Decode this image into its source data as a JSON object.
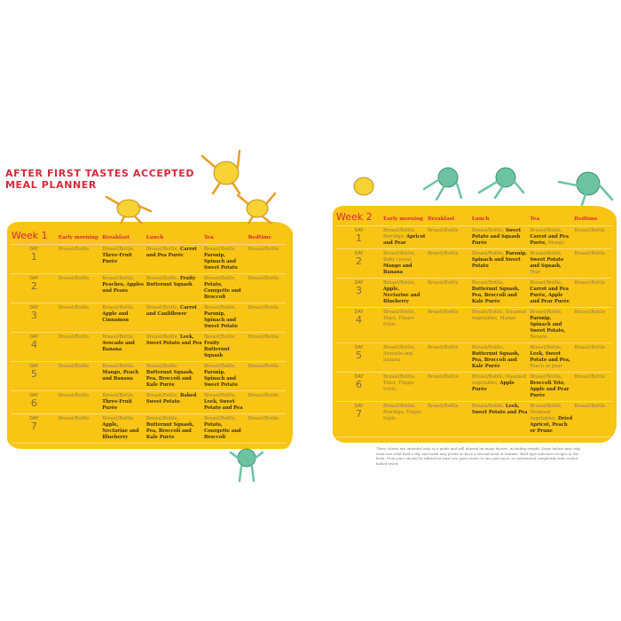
{
  "title": {
    "line1": "AFTER FIRST TASTES ACCEPTED",
    "line2": "MEAL PLANNER"
  },
  "colors": {
    "accent": "#d9283a",
    "panel": "#f9c413"
  },
  "day_label": "DAY",
  "week1": {
    "label": "Week 1",
    "headers": [
      "Early morning",
      "Breakfast",
      "Lunch",
      "Tea",
      "Bedtime"
    ],
    "rows": [
      {
        "day": "1",
        "cells": [
          [
            {
              "t": "Breast/Bottle",
              "b": false
            }
          ],
          [
            {
              "t": "Breast/Bottle, ",
              "b": false
            },
            {
              "t": "Three-Fruit Purée",
              "b": true
            }
          ],
          [
            {
              "t": "Breast/Bottle, ",
              "b": false
            },
            {
              "t": "Carrot and Pea Purée",
              "b": true
            }
          ],
          [
            {
              "t": "Breast/Bottle, ",
              "b": false
            },
            {
              "t": "Parsnip, Spinach and Sweet Potato",
              "b": true
            }
          ],
          [
            {
              "t": "Breast/Bottle",
              "b": false
            }
          ]
        ]
      },
      {
        "day": "2",
        "cells": [
          [
            {
              "t": "Breast/Bottle",
              "b": false
            }
          ],
          [
            {
              "t": "Breast/Bottle, ",
              "b": false
            },
            {
              "t": "Peaches, Apples and Pears",
              "b": true
            }
          ],
          [
            {
              "t": "Breast/Bottle, ",
              "b": false
            },
            {
              "t": "Fruity Butternut Squash",
              "b": true
            }
          ],
          [
            {
              "t": "Breast/Bottle, ",
              "b": false
            },
            {
              "t": "Potato, Courgette and Broccoli",
              "b": true
            }
          ],
          [
            {
              "t": "Breast/Bottle",
              "b": false
            }
          ]
        ]
      },
      {
        "day": "3",
        "cells": [
          [
            {
              "t": "Breast/Bottle",
              "b": false
            }
          ],
          [
            {
              "t": "Breast/Bottle, ",
              "b": false
            },
            {
              "t": "Apple and Cinnamon",
              "b": true
            }
          ],
          [
            {
              "t": "Breast/Bottle, ",
              "b": false
            },
            {
              "t": "Carrot and Cauliflower",
              "b": true
            }
          ],
          [
            {
              "t": "Breast/Bottle, ",
              "b": false
            },
            {
              "t": "Parsnip, Spinach and Sweet Potato",
              "b": true
            }
          ],
          [
            {
              "t": "Breast/Bottle",
              "b": false
            }
          ]
        ]
      },
      {
        "day": "4",
        "cells": [
          [
            {
              "t": "Breast/Bottle",
              "b": false
            }
          ],
          [
            {
              "t": "Breast/Bottle, ",
              "b": false
            },
            {
              "t": "Avocado and Banana",
              "b": true
            }
          ],
          [
            {
              "t": "Breast/Bottle, ",
              "b": false
            },
            {
              "t": "Leek, Sweet Potato and Pea",
              "b": true
            }
          ],
          [
            {
              "t": "Breast/Bottle, ",
              "b": false
            },
            {
              "t": "Fruity Butternut Squash",
              "b": true
            }
          ],
          [
            {
              "t": "Breast/Bottle",
              "b": false
            }
          ]
        ]
      },
      {
        "day": "5",
        "cells": [
          [
            {
              "t": "Breast/Bottle",
              "b": false
            }
          ],
          [
            {
              "t": "Breast/Bottle, ",
              "b": false
            },
            {
              "t": "Mango, Peach and Banana",
              "b": true
            }
          ],
          [
            {
              "t": "Breast/Bottle, ",
              "b": false
            },
            {
              "t": "Butternut Squash, Pea, Broccoli and Kale Purée",
              "b": true
            }
          ],
          [
            {
              "t": "Breast/Bottle, ",
              "b": false
            },
            {
              "t": "Parsnip, Spinach and Sweet Potato",
              "b": true
            }
          ],
          [
            {
              "t": "Breast/Bottle",
              "b": false
            }
          ]
        ]
      },
      {
        "day": "6",
        "cells": [
          [
            {
              "t": "Breast/Bottle",
              "b": false
            }
          ],
          [
            {
              "t": "Breast/Bottle, ",
              "b": false
            },
            {
              "t": "Three-Fruit Purée",
              "b": true
            }
          ],
          [
            {
              "t": "Breast/Bottle, ",
              "b": false
            },
            {
              "t": "Baked Sweet Potato",
              "b": true
            }
          ],
          [
            {
              "t": "Breast/Bottle, ",
              "b": false
            },
            {
              "t": "Leek, Sweet Potato and Pea",
              "b": true
            }
          ],
          [
            {
              "t": "Breast/Bottle",
              "b": false
            }
          ]
        ]
      },
      {
        "day": "7",
        "cells": [
          [
            {
              "t": "Breast/Bottle",
              "b": false
            }
          ],
          [
            {
              "t": "Breast/Bottle, ",
              "b": false
            },
            {
              "t": "Apple, Nectarine and Blueberry",
              "b": true
            }
          ],
          [
            {
              "t": "Breast/Bottle, ",
              "b": false
            },
            {
              "t": "Butternut Squash, Pea, Broccoli and Kale Purée",
              "b": true
            }
          ],
          [
            {
              "t": "Breast/Bottle, ",
              "b": false
            },
            {
              "t": "Potato, Courgette and Broccoli",
              "b": true
            }
          ],
          [
            {
              "t": "Breast/Bottle",
              "b": false
            }
          ]
        ]
      }
    ]
  },
  "week2": {
    "label": "Week 2",
    "headers": [
      "Early morning",
      "Breakfast",
      "Lunch",
      "Tea",
      "Bedtime"
    ],
    "rows": [
      {
        "day": "1",
        "cells": [
          [
            {
              "t": "Breast/Bottle, Porridge, ",
              "b": false
            },
            {
              "t": "Apricot and Pear",
              "b": true
            }
          ],
          [
            {
              "t": "Breast/Bottle",
              "b": false
            }
          ],
          [
            {
              "t": "Breast/Bottle, ",
              "b": false
            },
            {
              "t": "Sweet Potato and Squash Purée",
              "b": true
            }
          ],
          [
            {
              "t": "Breast/Bottle, ",
              "b": false
            },
            {
              "t": "Carrot and Pea Purée,",
              "b": true
            },
            {
              "t": " Mango",
              "b": false
            }
          ],
          [
            {
              "t": "Breast/Bottle",
              "b": false
            }
          ]
        ]
      },
      {
        "day": "2",
        "cells": [
          [
            {
              "t": "Breast/Bottle, Baby cereal, ",
              "b": false
            },
            {
              "t": "Mango and Banana",
              "b": true
            }
          ],
          [
            {
              "t": "Breast/Bottle",
              "b": false
            }
          ],
          [
            {
              "t": "Breast/Bottle, ",
              "b": false
            },
            {
              "t": "Parsnip, Spinach and Sweet Potato",
              "b": true
            }
          ],
          [
            {
              "t": "Breast/Bottle, ",
              "b": false
            },
            {
              "t": "Sweet Potato and Squash,",
              "b": true
            },
            {
              "t": " Pear",
              "b": false
            }
          ],
          [
            {
              "t": "Breast/Bottle",
              "b": false
            }
          ]
        ]
      },
      {
        "day": "3",
        "cells": [
          [
            {
              "t": "Breast/Bottle, ",
              "b": false
            },
            {
              "t": "Apple, Nectarine and Blueberry",
              "b": true
            }
          ],
          [
            {
              "t": "Breast/Bottle",
              "b": false
            }
          ],
          [
            {
              "t": "Breast/Bottle, ",
              "b": false
            },
            {
              "t": "Butternut Squash, Pea, Broccoli and Kale Purée",
              "b": true
            }
          ],
          [
            {
              "t": "Breast/Bottle, ",
              "b": false
            },
            {
              "t": "Carrot and Pea Purée, Apple and Pear Purée",
              "b": true
            }
          ],
          [
            {
              "t": "Breast/Bottle",
              "b": false
            }
          ]
        ]
      },
      {
        "day": "4",
        "cells": [
          [
            {
              "t": "Breast/Bottle, Toast, Finger fruits",
              "b": false
            }
          ],
          [
            {
              "t": "Breast/Bottle",
              "b": false
            }
          ],
          [
            {
              "t": "Breast/Bottle, Steamed vegetables, Mango",
              "b": false
            }
          ],
          [
            {
              "t": "Breast/Bottle, ",
              "b": false
            },
            {
              "t": "Parsnip, Spinach and Sweet Potato,",
              "b": true
            },
            {
              "t": " Banana",
              "b": false
            }
          ],
          [
            {
              "t": "Breast/Bottle",
              "b": false
            }
          ]
        ]
      },
      {
        "day": "5",
        "cells": [
          [
            {
              "t": "Breast/Bottle, Avocado and banana",
              "b": false
            }
          ],
          [
            {
              "t": "Breast/Bottle",
              "b": false
            }
          ],
          [
            {
              "t": "Breast/Bottle, ",
              "b": false
            },
            {
              "t": "Butternut Squash, Pea, Broccoli and Kale Purée",
              "b": true
            }
          ],
          [
            {
              "t": "Breast/Bottle, ",
              "b": false
            },
            {
              "t": "Leek, Sweet Potato and Pea,",
              "b": true
            },
            {
              "t": " Peach or pear",
              "b": false
            }
          ],
          [
            {
              "t": "Breast/Bottle",
              "b": false
            }
          ]
        ]
      },
      {
        "day": "6",
        "cells": [
          [
            {
              "t": "Breast/Bottle, Toast, Finger fruits",
              "b": false
            }
          ],
          [
            {
              "t": "Breast/Bottle",
              "b": false
            }
          ],
          [
            {
              "t": "Breast/Bottle, Steamed vegetables, ",
              "b": false
            },
            {
              "t": "Apple Purée",
              "b": true
            }
          ],
          [
            {
              "t": "Breast/Bottle, ",
              "b": false
            },
            {
              "t": "Broccoli Trio, Apple and Pear Purée",
              "b": true
            }
          ],
          [
            {
              "t": "Breast/Bottle",
              "b": false
            }
          ]
        ]
      },
      {
        "day": "7",
        "cells": [
          [
            {
              "t": "Breast/Bottle, Porridge, Finger fruits",
              "b": false
            }
          ],
          [
            {
              "t": "Breast/Bottle",
              "b": false
            }
          ],
          [
            {
              "t": "Breast/Bottle, ",
              "b": false
            },
            {
              "t": "Leek, Sweet Potato and Pea",
              "b": true
            }
          ],
          [
            {
              "t": "Breast/Bottle, Steamed vegetables, ",
              "b": false
            },
            {
              "t": "Dried Apricot, Peach or Prune",
              "b": true
            }
          ],
          [
            {
              "t": "Breast/Bottle",
              "b": false
            }
          ]
        ]
      }
    ]
  },
  "footnote": "These charts are intended only as a guide and will depend on many factors, including weight. Some babies may only want one solid feed a day and some may prefer to have a second meal at teatime. Bold type indicates recipes in the book. Fruit juice should be diluted at least two parts water to one part juice, or substituted completely with cooled boiled water."
}
